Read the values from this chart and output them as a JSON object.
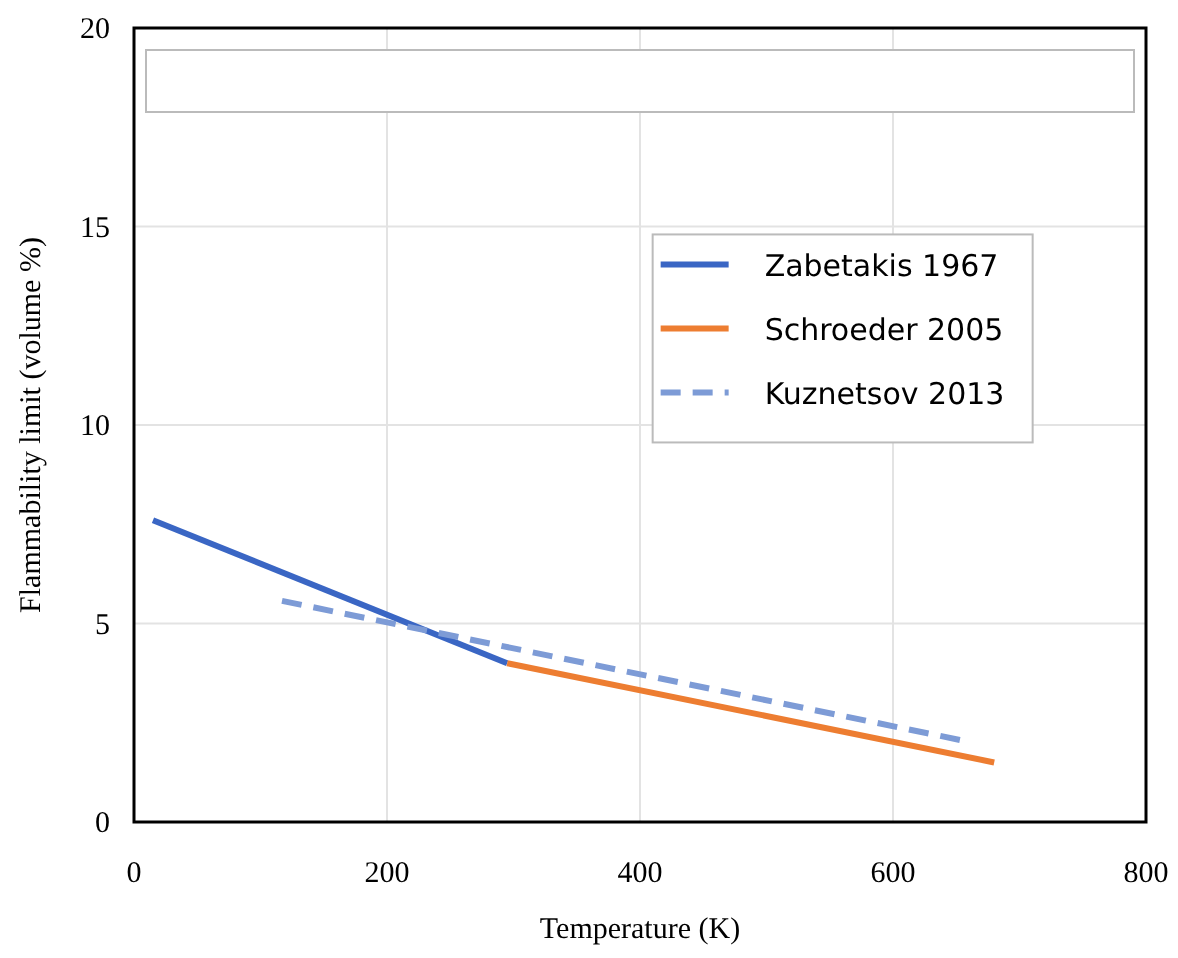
{
  "chart_data": {
    "type": "line",
    "xlabel": "Temperature (K)",
    "ylabel": "Flammability limit (volume %)",
    "xlim": [
      0,
      800
    ],
    "xticks": [
      0,
      200,
      400,
      600,
      800
    ],
    "ylim": [
      0,
      20
    ],
    "yticks": [
      0,
      5,
      10,
      15,
      20
    ],
    "grid": true,
    "legend": "top right",
    "marker": "none",
    "series": [
      {
        "name": "Zabetakis 1967",
        "color": "#3a66c4",
        "x": [
          15,
          295
        ],
        "values": [
          7.6,
          4.0
        ],
        "line_style": "solid"
      },
      {
        "name": "Schroeder 2005",
        "color": "#ed7d31",
        "x": [
          295,
          680
        ],
        "values": [
          4.0,
          1.5
        ],
        "line_style": "solid"
      },
      {
        "name": "Kuznetsov 2013",
        "color": "#7d9bd6",
        "x": [
          117,
          657
        ],
        "values": [
          5.57,
          2.04
        ],
        "line_style": "dashed"
      }
    ]
  }
}
